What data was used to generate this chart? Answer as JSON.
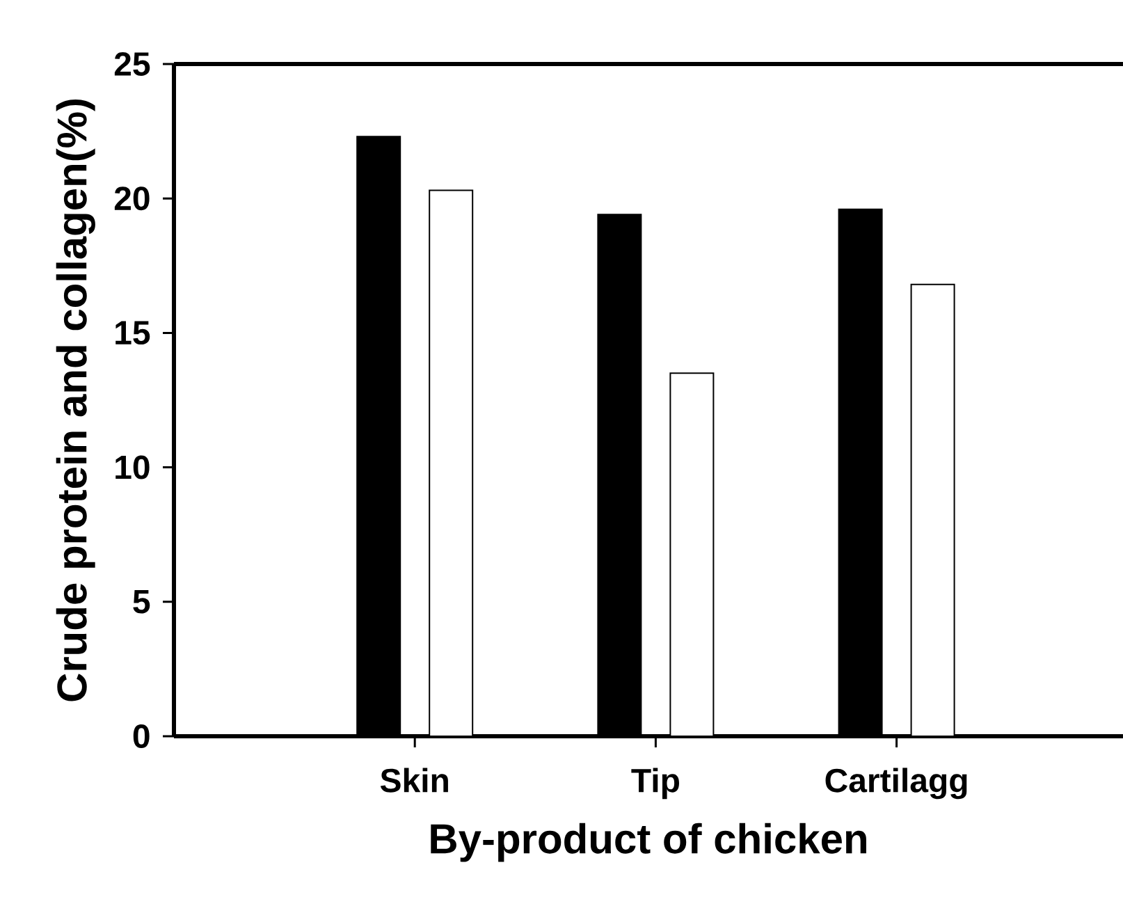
{
  "chart_data": {
    "type": "bar",
    "xlabel": "By-product of chicken",
    "ylabel": "Crude protein and collagen(%)",
    "categories": [
      "Skin",
      "Tip",
      "Cartilagg"
    ],
    "series": [
      {
        "color": "#000000",
        "values": [
          22.3,
          19.4,
          19.6
        ]
      },
      {
        "color": "#ffffff",
        "values": [
          20.3,
          13.5,
          16.8
        ]
      }
    ],
    "ylim": [
      0,
      25
    ],
    "yticks": [
      0,
      5,
      10,
      15,
      20,
      25
    ]
  }
}
